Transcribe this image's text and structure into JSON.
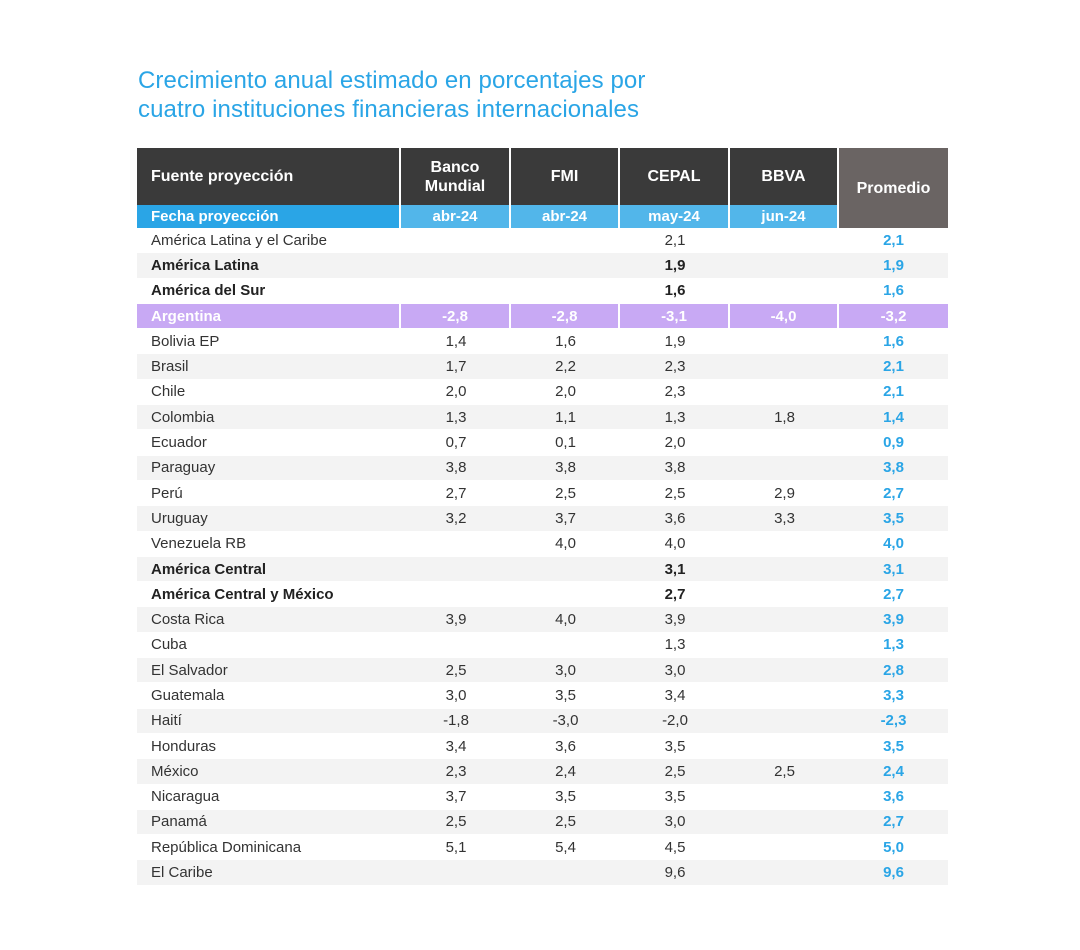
{
  "title": {
    "line1": "Crecimiento anual estimado en porcentajes por",
    "line2": "cuatro instituciones financieras internacionales"
  },
  "colors": {
    "accent": "#2aa5e6",
    "header_bg": "#3a3a3a",
    "promedio_bg": "#6a6463",
    "highlight": "#c8a9f4"
  },
  "chart_data": {
    "type": "table",
    "title": "Crecimiento anual estimado en porcentajes por cuatro instituciones financieras internacionales",
    "columns": [
      "Fuente proyección",
      "Banco Mundial",
      "FMI",
      "CEPAL",
      "BBVA",
      "Promedio"
    ],
    "date_row": {
      "label": "Fecha proyección",
      "values": [
        "abr-24",
        "abr-24",
        "may-24",
        "jun-24"
      ]
    },
    "rows": [
      {
        "name": "América Latina y el Caribe",
        "bm": "",
        "fmi": "",
        "cepal": "2,1",
        "bbva": "",
        "avg": "2,1"
      },
      {
        "name": "América Latina",
        "bm": "",
        "fmi": "",
        "cepal": "1,9",
        "bbva": "",
        "avg": "1,9",
        "bold": true
      },
      {
        "name": "América del Sur",
        "bm": "",
        "fmi": "",
        "cepal": "1,6",
        "bbva": "",
        "avg": "1,6",
        "bold": true
      },
      {
        "name": "Argentina",
        "bm": "-2,8",
        "fmi": "-2,8",
        "cepal": "-3,1",
        "bbva": "-4,0",
        "avg": "-3,2",
        "highlight": true
      },
      {
        "name": "Bolivia EP",
        "bm": "1,4",
        "fmi": "1,6",
        "cepal": "1,9",
        "bbva": "",
        "avg": "1,6"
      },
      {
        "name": "Brasil",
        "bm": "1,7",
        "fmi": "2,2",
        "cepal": "2,3",
        "bbva": "",
        "avg": "2,1"
      },
      {
        "name": "Chile",
        "bm": "2,0",
        "fmi": "2,0",
        "cepal": "2,3",
        "bbva": "",
        "avg": "2,1"
      },
      {
        "name": "Colombia",
        "bm": "1,3",
        "fmi": "1,1",
        "cepal": "1,3",
        "bbva": "1,8",
        "avg": "1,4"
      },
      {
        "name": "Ecuador",
        "bm": "0,7",
        "fmi": "0,1",
        "cepal": "2,0",
        "bbva": "",
        "avg": "0,9"
      },
      {
        "name": "Paraguay",
        "bm": "3,8",
        "fmi": "3,8",
        "cepal": "3,8",
        "bbva": "",
        "avg": "3,8"
      },
      {
        "name": "Perú",
        "bm": "2,7",
        "fmi": "2,5",
        "cepal": "2,5",
        "bbva": "2,9",
        "avg": "2,7"
      },
      {
        "name": "Uruguay",
        "bm": "3,2",
        "fmi": "3,7",
        "cepal": "3,6",
        "bbva": "3,3",
        "avg": "3,5"
      },
      {
        "name": "Venezuela RB",
        "bm": "",
        "fmi": "4,0",
        "cepal": "4,0",
        "bbva": "",
        "avg": "4,0"
      },
      {
        "name": "América Central",
        "bm": "",
        "fmi": "",
        "cepal": "3,1",
        "bbva": "",
        "avg": "3,1",
        "bold": true
      },
      {
        "name": "América Central y México",
        "bm": "",
        "fmi": "",
        "cepal": "2,7",
        "bbva": "",
        "avg": "2,7",
        "bold": true
      },
      {
        "name": "Costa Rica",
        "bm": "3,9",
        "fmi": "4,0",
        "cepal": "3,9",
        "bbva": "",
        "avg": "3,9"
      },
      {
        "name": "Cuba",
        "bm": "",
        "fmi": "",
        "cepal": "1,3",
        "bbva": "",
        "avg": "1,3"
      },
      {
        "name": "El Salvador",
        "bm": "2,5",
        "fmi": "3,0",
        "cepal": "3,0",
        "bbva": "",
        "avg": "2,8"
      },
      {
        "name": "Guatemala",
        "bm": "3,0",
        "fmi": "3,5",
        "cepal": "3,4",
        "bbva": "",
        "avg": "3,3"
      },
      {
        "name": "Haití",
        "bm": "-1,8",
        "fmi": "-3,0",
        "cepal": "-2,0",
        "bbva": "",
        "avg": "-2,3"
      },
      {
        "name": "Honduras",
        "bm": "3,4",
        "fmi": "3,6",
        "cepal": "3,5",
        "bbva": "",
        "avg": "3,5"
      },
      {
        "name": "México",
        "bm": "2,3",
        "fmi": "2,4",
        "cepal": "2,5",
        "bbva": "2,5",
        "avg": "2,4"
      },
      {
        "name": "Nicaragua",
        "bm": "3,7",
        "fmi": "3,5",
        "cepal": "3,5",
        "bbva": "",
        "avg": "3,6"
      },
      {
        "name": "Panamá",
        "bm": "2,5",
        "fmi": "2,5",
        "cepal": "3,0",
        "bbva": "",
        "avg": "2,7"
      },
      {
        "name": "República Dominicana",
        "bm": "5,1",
        "fmi": "5,4",
        "cepal": "4,5",
        "bbva": "",
        "avg": "5,0"
      },
      {
        "name": "El Caribe",
        "bm": "",
        "fmi": "",
        "cepal": "9,6",
        "bbva": "",
        "avg": "9,6"
      }
    ]
  }
}
